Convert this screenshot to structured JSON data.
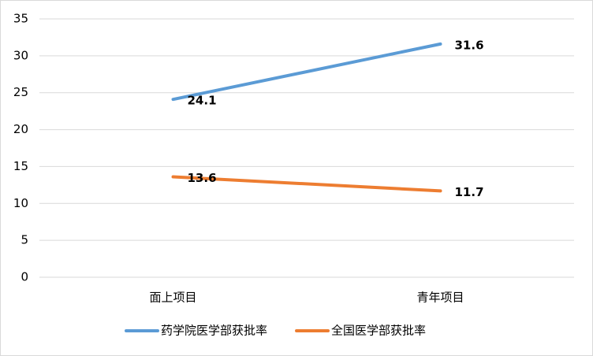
{
  "chart_data": {
    "type": "line",
    "categories": [
      "面上项目",
      "青年项目"
    ],
    "series": [
      {
        "name": "药学院医学部获批率",
        "color": "#5b9bd5",
        "values": [
          24.1,
          31.6
        ]
      },
      {
        "name": "全国医学部获批率",
        "color": "#ed7d31",
        "values": [
          13.6,
          11.7
        ]
      }
    ],
    "ylim": [
      0,
      35
    ],
    "yticks": [
      0,
      5,
      10,
      15,
      20,
      25,
      30,
      35
    ],
    "grid": true,
    "legend": "bottom"
  }
}
